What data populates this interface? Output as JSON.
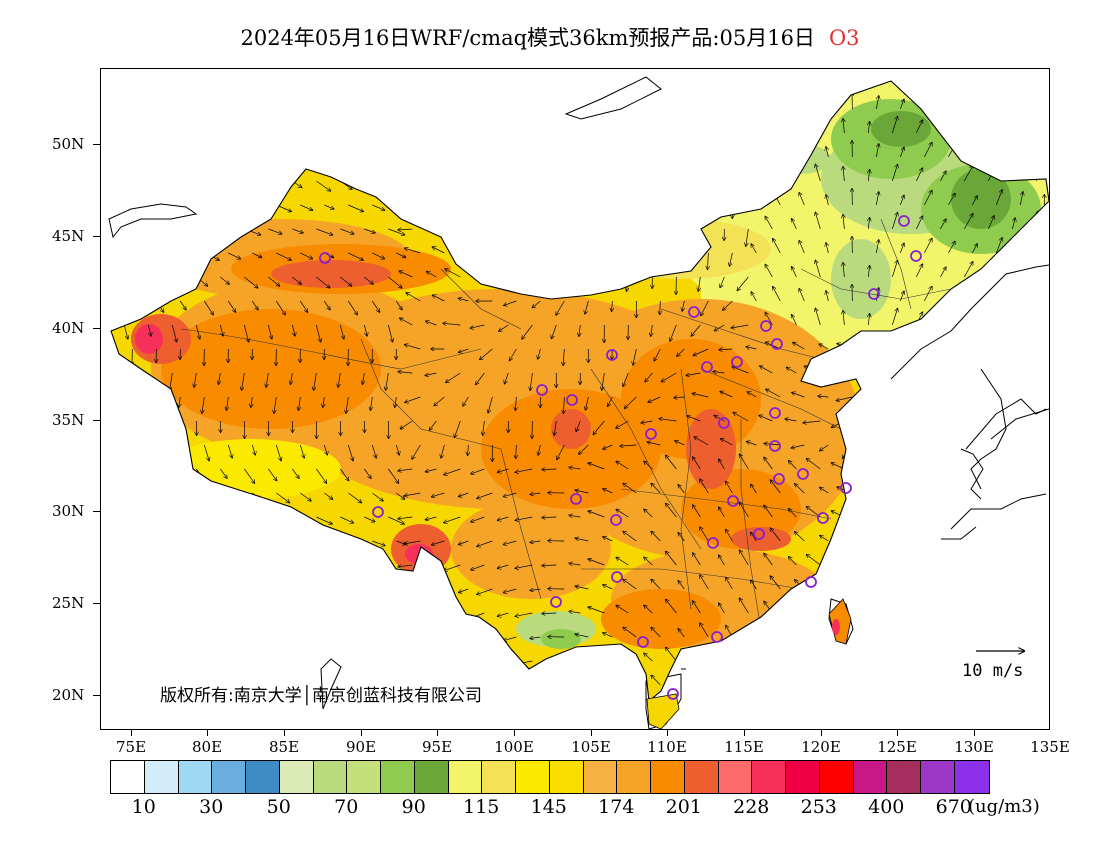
{
  "title": {
    "text": "2024年05月16日WRF/cmaq模式36km预报产品:05月16日",
    "species": "O3"
  },
  "axes": {
    "lat_labels": [
      "50N",
      "45N",
      "40N",
      "35N",
      "30N",
      "25N",
      "20N"
    ],
    "lon_labels": [
      "75E",
      "80E",
      "85E",
      "90E",
      "95E",
      "100E",
      "105E",
      "110E",
      "115E",
      "120E",
      "125E",
      "130E",
      "135E"
    ]
  },
  "copyright": "版权所有:南京大学│南京创蓝科技有限公司",
  "wind_reference": {
    "label": "10 m/s"
  },
  "colorbar": {
    "colors": [
      "#ffffff",
      "#d2ecfa",
      "#9ed8f2",
      "#6aaee0",
      "#3f8cc5",
      "#dcebb6",
      "#b9db7e",
      "#c4e07a",
      "#8ecb4e",
      "#6aa738",
      "#f2f56a",
      "#f3e156",
      "#fbea00",
      "#fade00",
      "#f7b142",
      "#f5a428",
      "#f88b00",
      "#ee5f30",
      "#ff6a6a",
      "#f7305a",
      "#ef0045",
      "#ff0000",
      "#c81887",
      "#a62e5c",
      "#9e36c8",
      "#8c2fe8"
    ],
    "labels": [
      "10",
      "30",
      "50",
      "70",
      "90",
      "115",
      "145",
      "174",
      "201",
      "228",
      "253",
      "400",
      "670"
    ],
    "unit": "(ug/m3)"
  },
  "map": {
    "projection_range": {
      "lon": [
        73,
        135
      ],
      "lat": [
        18,
        54
      ]
    },
    "palette_hint": "northeast greens, north/east yellow, central orange, southwest Tibet red-orange bands"
  }
}
